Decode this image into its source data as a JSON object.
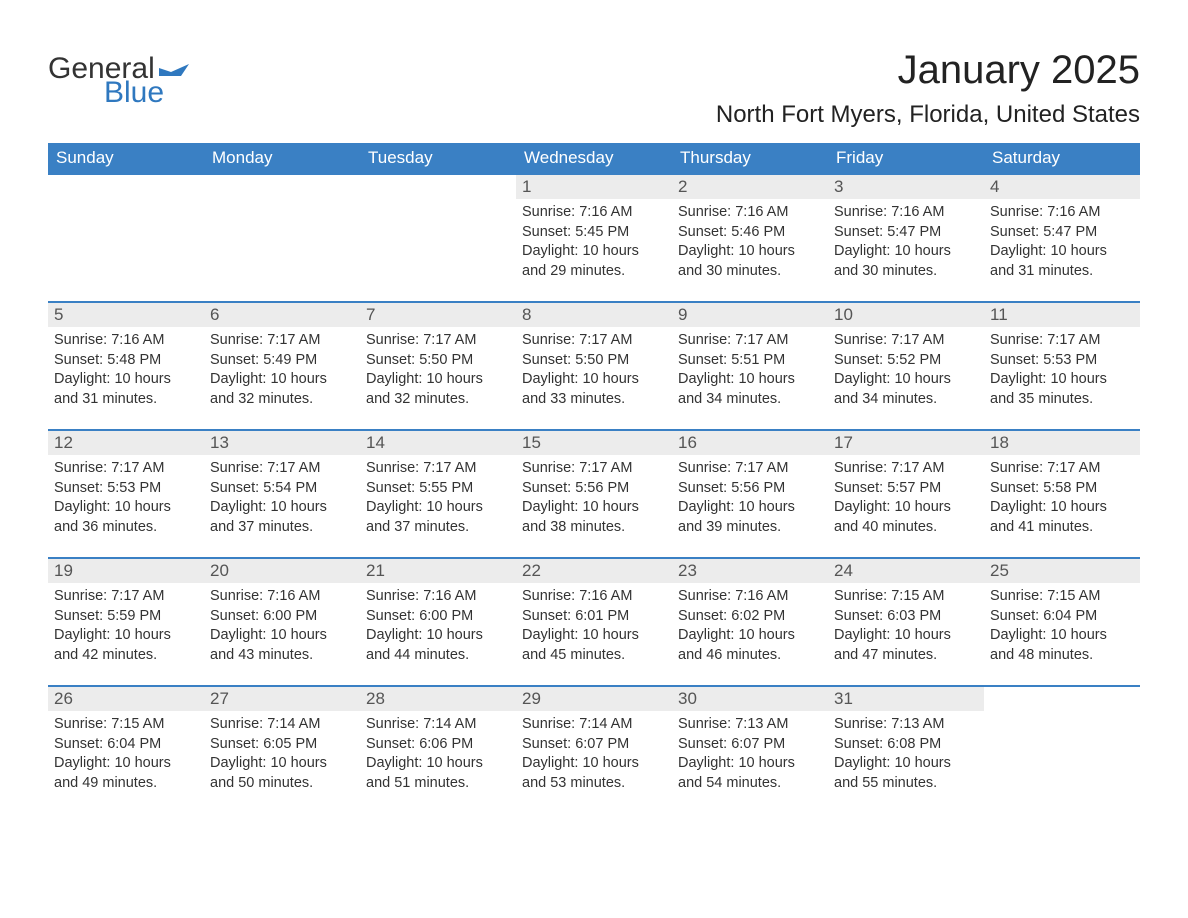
{
  "logo": {
    "text1": "General",
    "text2": "Blue",
    "icon_color": "#2f78bf"
  },
  "title": "January 2025",
  "location": "North Fort Myers, Florida, United States",
  "colors": {
    "header_bg": "#3a80c4",
    "header_text": "#ffffff",
    "daynum_bg": "#ececec",
    "daynum_text": "#555555",
    "border": "#3a80c4",
    "body_text": "#333333"
  },
  "day_headers": [
    "Sunday",
    "Monday",
    "Tuesday",
    "Wednesday",
    "Thursday",
    "Friday",
    "Saturday"
  ],
  "weeks": [
    [
      null,
      null,
      null,
      {
        "n": "1",
        "sunrise": "7:16 AM",
        "sunset": "5:45 PM",
        "daylight": "10 hours and 29 minutes."
      },
      {
        "n": "2",
        "sunrise": "7:16 AM",
        "sunset": "5:46 PM",
        "daylight": "10 hours and 30 minutes."
      },
      {
        "n": "3",
        "sunrise": "7:16 AM",
        "sunset": "5:47 PM",
        "daylight": "10 hours and 30 minutes."
      },
      {
        "n": "4",
        "sunrise": "7:16 AM",
        "sunset": "5:47 PM",
        "daylight": "10 hours and 31 minutes."
      }
    ],
    [
      {
        "n": "5",
        "sunrise": "7:16 AM",
        "sunset": "5:48 PM",
        "daylight": "10 hours and 31 minutes."
      },
      {
        "n": "6",
        "sunrise": "7:17 AM",
        "sunset": "5:49 PM",
        "daylight": "10 hours and 32 minutes."
      },
      {
        "n": "7",
        "sunrise": "7:17 AM",
        "sunset": "5:50 PM",
        "daylight": "10 hours and 32 minutes."
      },
      {
        "n": "8",
        "sunrise": "7:17 AM",
        "sunset": "5:50 PM",
        "daylight": "10 hours and 33 minutes."
      },
      {
        "n": "9",
        "sunrise": "7:17 AM",
        "sunset": "5:51 PM",
        "daylight": "10 hours and 34 minutes."
      },
      {
        "n": "10",
        "sunrise": "7:17 AM",
        "sunset": "5:52 PM",
        "daylight": "10 hours and 34 minutes."
      },
      {
        "n": "11",
        "sunrise": "7:17 AM",
        "sunset": "5:53 PM",
        "daylight": "10 hours and 35 minutes."
      }
    ],
    [
      {
        "n": "12",
        "sunrise": "7:17 AM",
        "sunset": "5:53 PM",
        "daylight": "10 hours and 36 minutes."
      },
      {
        "n": "13",
        "sunrise": "7:17 AM",
        "sunset": "5:54 PM",
        "daylight": "10 hours and 37 minutes."
      },
      {
        "n": "14",
        "sunrise": "7:17 AM",
        "sunset": "5:55 PM",
        "daylight": "10 hours and 37 minutes."
      },
      {
        "n": "15",
        "sunrise": "7:17 AM",
        "sunset": "5:56 PM",
        "daylight": "10 hours and 38 minutes."
      },
      {
        "n": "16",
        "sunrise": "7:17 AM",
        "sunset": "5:56 PM",
        "daylight": "10 hours and 39 minutes."
      },
      {
        "n": "17",
        "sunrise": "7:17 AM",
        "sunset": "5:57 PM",
        "daylight": "10 hours and 40 minutes."
      },
      {
        "n": "18",
        "sunrise": "7:17 AM",
        "sunset": "5:58 PM",
        "daylight": "10 hours and 41 minutes."
      }
    ],
    [
      {
        "n": "19",
        "sunrise": "7:17 AM",
        "sunset": "5:59 PM",
        "daylight": "10 hours and 42 minutes."
      },
      {
        "n": "20",
        "sunrise": "7:16 AM",
        "sunset": "6:00 PM",
        "daylight": "10 hours and 43 minutes."
      },
      {
        "n": "21",
        "sunrise": "7:16 AM",
        "sunset": "6:00 PM",
        "daylight": "10 hours and 44 minutes."
      },
      {
        "n": "22",
        "sunrise": "7:16 AM",
        "sunset": "6:01 PM",
        "daylight": "10 hours and 45 minutes."
      },
      {
        "n": "23",
        "sunrise": "7:16 AM",
        "sunset": "6:02 PM",
        "daylight": "10 hours and 46 minutes."
      },
      {
        "n": "24",
        "sunrise": "7:15 AM",
        "sunset": "6:03 PM",
        "daylight": "10 hours and 47 minutes."
      },
      {
        "n": "25",
        "sunrise": "7:15 AM",
        "sunset": "6:04 PM",
        "daylight": "10 hours and 48 minutes."
      }
    ],
    [
      {
        "n": "26",
        "sunrise": "7:15 AM",
        "sunset": "6:04 PM",
        "daylight": "10 hours and 49 minutes."
      },
      {
        "n": "27",
        "sunrise": "7:14 AM",
        "sunset": "6:05 PM",
        "daylight": "10 hours and 50 minutes."
      },
      {
        "n": "28",
        "sunrise": "7:14 AM",
        "sunset": "6:06 PM",
        "daylight": "10 hours and 51 minutes."
      },
      {
        "n": "29",
        "sunrise": "7:14 AM",
        "sunset": "6:07 PM",
        "daylight": "10 hours and 53 minutes."
      },
      {
        "n": "30",
        "sunrise": "7:13 AM",
        "sunset": "6:07 PM",
        "daylight": "10 hours and 54 minutes."
      },
      {
        "n": "31",
        "sunrise": "7:13 AM",
        "sunset": "6:08 PM",
        "daylight": "10 hours and 55 minutes."
      },
      null
    ]
  ],
  "labels": {
    "sunrise": "Sunrise:",
    "sunset": "Sunset:",
    "daylight": "Daylight:"
  }
}
